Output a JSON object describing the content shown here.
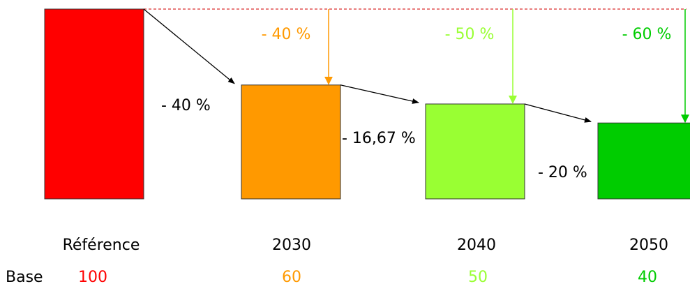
{
  "chart_data": {
    "type": "bar",
    "categories": [
      "Référence",
      "2030",
      "2040",
      "2050"
    ],
    "values": [
      100,
      60,
      50,
      40
    ],
    "colors": [
      "#ff0000",
      "#ff9900",
      "#99ff33",
      "#00cc00"
    ],
    "row_label": "Base",
    "step_labels": [
      "- 40 %",
      "- 16,67 %",
      "- 20 %"
    ],
    "cumulative_labels": [
      "- 40 %",
      "- 50 %",
      "- 60 %"
    ],
    "reference_line": 100,
    "ylim": [
      0,
      100
    ]
  }
}
